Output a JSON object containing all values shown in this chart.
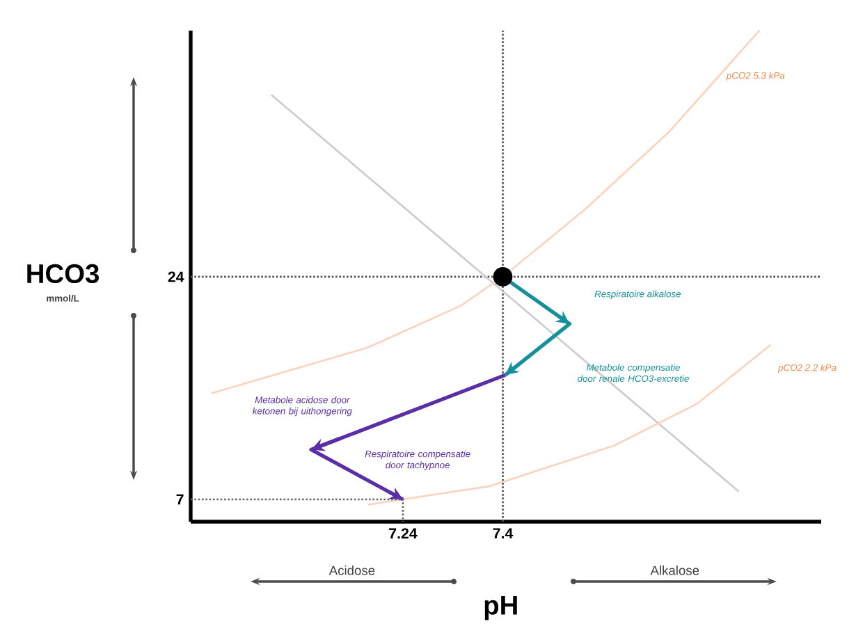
{
  "chart_data": {
    "type": "line",
    "xlabel": "pH",
    "ylabel": "HCO3",
    "xlim": [
      6.9,
      7.91
    ],
    "ylim": [
      5.3,
      42.8
    ],
    "xticks": [
      7.24,
      7.4
    ],
    "yticks": [
      24,
      7
    ],
    "grid": false,
    "series": [
      {
        "color": "#cccccc",
        "x": [
          7.029,
          7.778
        ],
        "values": [
          37.9,
          7.6
        ]
      },
      {
        "color": "#fbd3bf",
        "x": [
          6.933,
          7.184,
          7.333,
          7.4,
          7.533,
          7.667,
          7.811
        ],
        "values": [
          15.1,
          18.6,
          21.8,
          24,
          29.2,
          35.1,
          42.8
        ]
      },
      {
        "color": "#fbd3bf",
        "x": [
          7.184,
          7.378,
          7.578,
          7.711,
          7.829
        ],
        "values": [
          6.6,
          8,
          11.1,
          14.3,
          18.8
        ]
      },
      {
        "color": "#16909b",
        "x": [
          7.4,
          7.507,
          7.404
        ],
        "values": [
          24,
          20.4,
          16.5
        ]
      },
      {
        "color": "#5a2fa6",
        "x": [
          7.404,
          7.093,
          7.24
        ],
        "values": [
          16.5,
          10.8,
          7
        ]
      },
      {
        "color": "#666666",
        "line_style": "dotted",
        "x": [
          6.9,
          7.24,
          7.24
        ],
        "values": [
          7,
          7,
          5.3
        ]
      },
      {
        "type": "scatter",
        "marker": "circle",
        "color": "#000000",
        "x": [
          7.4
        ],
        "values": [
          24
        ]
      }
    ],
    "ref_lines": [
      {
        "axis": "x",
        "value": 7.4,
        "color": "#555555",
        "line_style": "dotted"
      },
      {
        "axis": "y",
        "value": 24,
        "color": "#555555",
        "line_style": "dotted"
      }
    ],
    "annotations": [
      "pCO2 5.3 kPa",
      "pCO2 2.2 kPa",
      "Respiratoire alkalose",
      "Metabole compensatie door renale HCO3-excretie",
      "Metabole acidose door ketonen bij uithongering",
      "Respiratoire compensatie door tachypnoe",
      "mmol/L",
      "Acidose",
      "Alkalose"
    ]
  }
}
